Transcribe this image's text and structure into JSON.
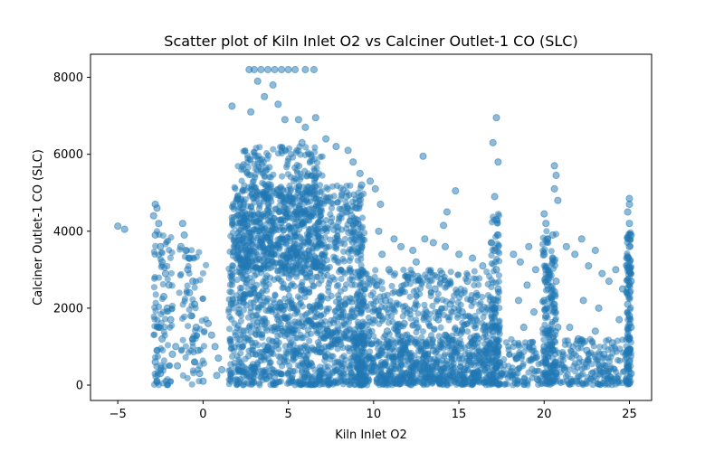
{
  "chart_data": {
    "type": "scatter",
    "title": "Scatter plot of Kiln Inlet O2 vs Calciner Outlet-1 CO (SLC)",
    "xlabel": "Kiln Inlet O2",
    "ylabel": "Calciner Outlet-1 CO (SLC)",
    "xlim": [
      -6.6,
      26.3
    ],
    "ylim": [
      -400,
      8600
    ],
    "xticks": [
      -5,
      0,
      5,
      10,
      15,
      20,
      25
    ],
    "xtick_labels": [
      "−5",
      "0",
      "5",
      "10",
      "15",
      "20",
      "25"
    ],
    "yticks": [
      0,
      2000,
      4000,
      6000,
      8000
    ],
    "ytick_labels": [
      "0",
      "2000",
      "4000",
      "6000",
      "8000"
    ],
    "grid": false,
    "marker_color": "#1f77b4",
    "marker_alpha": 0.5,
    "series": [
      {
        "points": [
          [
            -5.0,
            4130
          ],
          [
            -4.6,
            4050
          ],
          [
            -2.8,
            4700
          ],
          [
            -2.7,
            4600
          ],
          [
            -2.9,
            4400
          ],
          [
            -2.6,
            4200
          ],
          [
            -2.8,
            3900
          ],
          [
            -2.5,
            3600
          ],
          [
            -2.4,
            3200
          ],
          [
            -2.2,
            2900
          ],
          [
            -2.0,
            2600
          ],
          [
            -2.3,
            2300
          ],
          [
            -2.1,
            2000
          ],
          [
            -1.9,
            1700
          ],
          [
            -2.6,
            1500
          ],
          [
            -2.4,
            1200
          ],
          [
            -2.7,
            900
          ],
          [
            -2.8,
            600
          ],
          [
            -2.5,
            300
          ],
          [
            -2.7,
            100
          ],
          [
            -1.6,
            1000
          ],
          [
            -1.8,
            800
          ],
          [
            -1.5,
            500
          ],
          [
            -1.2,
            4200
          ],
          [
            -1.1,
            3900
          ],
          [
            -1.3,
            3600
          ],
          [
            -1.0,
            3500
          ],
          [
            -0.8,
            3300
          ],
          [
            -0.9,
            3000
          ],
          [
            -0.6,
            2700
          ],
          [
            -0.8,
            2400
          ],
          [
            -0.5,
            2100
          ],
          [
            -0.7,
            1800
          ],
          [
            -0.4,
            1500
          ],
          [
            -0.6,
            1200
          ],
          [
            -0.3,
            900
          ],
          [
            -0.5,
            600
          ],
          [
            -0.2,
            300
          ],
          [
            0.0,
            100
          ],
          [
            0.3,
            1600
          ],
          [
            0.5,
            1300
          ],
          [
            0.7,
            1000
          ],
          [
            0.9,
            700
          ],
          [
            1.1,
            400
          ],
          [
            0.8,
            250
          ],
          [
            2.7,
            8200
          ],
          [
            3.0,
            8200
          ],
          [
            3.4,
            8200
          ],
          [
            3.8,
            8200
          ],
          [
            4.2,
            8200
          ],
          [
            4.6,
            8200
          ],
          [
            5.0,
            8200
          ],
          [
            5.4,
            8200
          ],
          [
            6.0,
            8200
          ],
          [
            6.5,
            8200
          ],
          [
            3.2,
            7900
          ],
          [
            4.1,
            7800
          ],
          [
            3.6,
            7500
          ],
          [
            4.4,
            7300
          ],
          [
            1.7,
            7250
          ],
          [
            2.8,
            7100
          ],
          [
            4.8,
            6900
          ],
          [
            5.6,
            6900
          ],
          [
            6.6,
            6950
          ],
          [
            6.0,
            6700
          ],
          [
            7.2,
            6400
          ],
          [
            5.8,
            6300
          ],
          [
            7.8,
            6200
          ],
          [
            8.5,
            6100
          ],
          [
            8.8,
            5800
          ],
          [
            9.2,
            5500
          ],
          [
            9.8,
            5300
          ],
          [
            10.1,
            5100
          ],
          [
            9.3,
            5200
          ],
          [
            8.4,
            4900
          ],
          [
            10.4,
            4700
          ],
          [
            9.0,
            4600
          ],
          [
            8.7,
            4400
          ],
          [
            10.3,
            4000
          ],
          [
            11.2,
            3800
          ],
          [
            11.6,
            3600
          ],
          [
            12.3,
            3500
          ],
          [
            12.5,
            3200
          ],
          [
            13.0,
            3800
          ],
          [
            12.9,
            5950
          ],
          [
            13.5,
            3700
          ],
          [
            14.3,
            4500
          ],
          [
            14.1,
            4150
          ],
          [
            14.8,
            5050
          ],
          [
            14.2,
            3600
          ],
          [
            15.0,
            3400
          ],
          [
            15.8,
            3300
          ],
          [
            16.4,
            3100
          ],
          [
            16.9,
            3700
          ],
          [
            17.2,
            6950
          ],
          [
            17.0,
            6300
          ],
          [
            17.3,
            5800
          ],
          [
            17.1,
            4900
          ],
          [
            17.2,
            4300
          ],
          [
            17.3,
            3900
          ],
          [
            17.1,
            3500
          ],
          [
            17.2,
            3000
          ],
          [
            17.3,
            2500
          ],
          [
            17.1,
            2000
          ],
          [
            17.2,
            1500
          ],
          [
            17.3,
            1000
          ],
          [
            17.2,
            500
          ],
          [
            17.5,
            300
          ],
          [
            18.2,
            3400
          ],
          [
            18.6,
            3200
          ],
          [
            19.1,
            3600
          ],
          [
            19.5,
            3000
          ],
          [
            20.0,
            4450
          ],
          [
            20.1,
            4200
          ],
          [
            20.2,
            3800
          ],
          [
            20.0,
            3400
          ],
          [
            20.1,
            3000
          ],
          [
            20.2,
            2600
          ],
          [
            20.0,
            2200
          ],
          [
            20.1,
            1800
          ],
          [
            20.2,
            1400
          ],
          [
            20.0,
            1000
          ],
          [
            20.1,
            600
          ],
          [
            20.2,
            200
          ],
          [
            20.5,
            3900
          ],
          [
            20.6,
            5700
          ],
          [
            20.7,
            5450
          ],
          [
            20.6,
            5100
          ],
          [
            20.8,
            4800
          ],
          [
            20.5,
            3300
          ],
          [
            20.7,
            2700
          ],
          [
            20.6,
            2100
          ],
          [
            20.8,
            1500
          ],
          [
            20.5,
            900
          ],
          [
            20.7,
            300
          ],
          [
            21.3,
            3600
          ],
          [
            21.8,
            3400
          ],
          [
            22.2,
            3800
          ],
          [
            22.6,
            3100
          ],
          [
            23.0,
            3500
          ],
          [
            23.4,
            2900
          ],
          [
            23.8,
            2700
          ],
          [
            24.2,
            3000
          ],
          [
            24.6,
            2500
          ],
          [
            25.0,
            4850
          ],
          [
            25.0,
            4700
          ],
          [
            24.9,
            4500
          ],
          [
            25.0,
            4200
          ],
          [
            25.1,
            3900
          ],
          [
            25.0,
            3600
          ],
          [
            24.9,
            3300
          ],
          [
            25.0,
            3000
          ],
          [
            25.1,
            2700
          ],
          [
            25.0,
            2400
          ],
          [
            24.9,
            2100
          ],
          [
            25.0,
            1800
          ],
          [
            25.1,
            1500
          ],
          [
            25.0,
            1200
          ],
          [
            24.9,
            900
          ],
          [
            25.0,
            600
          ],
          [
            25.1,
            300
          ],
          [
            25.0,
            50
          ],
          [
            21.5,
            1500
          ],
          [
            22.0,
            1200
          ],
          [
            22.5,
            900
          ],
          [
            23.0,
            1400
          ],
          [
            23.5,
            800
          ],
          [
            24.0,
            1100
          ],
          [
            21.2,
            400
          ],
          [
            22.8,
            300
          ],
          [
            23.9,
            200
          ],
          [
            22.3,
            2200
          ],
          [
            23.2,
            2000
          ],
          [
            24.4,
            1700
          ],
          [
            19.0,
            2600
          ],
          [
            18.5,
            2200
          ],
          [
            19.4,
            1900
          ],
          [
            18.8,
            1500
          ],
          [
            19.2,
            1100
          ],
          [
            18.4,
            700
          ],
          [
            15.5,
            2700
          ],
          [
            16.0,
            2300
          ],
          [
            15.2,
            1900
          ],
          [
            16.5,
            1500
          ],
          [
            15.8,
            1100
          ],
          [
            16.2,
            700
          ],
          [
            14.0,
            2900
          ],
          [
            13.6,
            2500
          ],
          [
            14.5,
            2100
          ],
          [
            13.8,
            1700
          ],
          [
            14.2,
            1300
          ],
          [
            13.5,
            900
          ],
          [
            12.0,
            2800
          ],
          [
            11.5,
            2400
          ],
          [
            12.4,
            2000
          ],
          [
            11.8,
            1600
          ],
          [
            12.2,
            1200
          ],
          [
            11.6,
            800
          ],
          [
            10.5,
            3400
          ],
          [
            10.9,
            3000
          ],
          [
            10.2,
            2600
          ],
          [
            10.7,
            2200
          ],
          [
            10.4,
            1800
          ],
          [
            10.8,
            1400
          ],
          [
            15.3,
            400
          ],
          [
            16.8,
            250
          ],
          [
            18.1,
            350
          ],
          [
            19.6,
            150
          ],
          [
            13.1,
            200
          ],
          [
            11.4,
            150
          ],
          [
            21.9,
            100
          ]
        ]
      }
    ]
  }
}
